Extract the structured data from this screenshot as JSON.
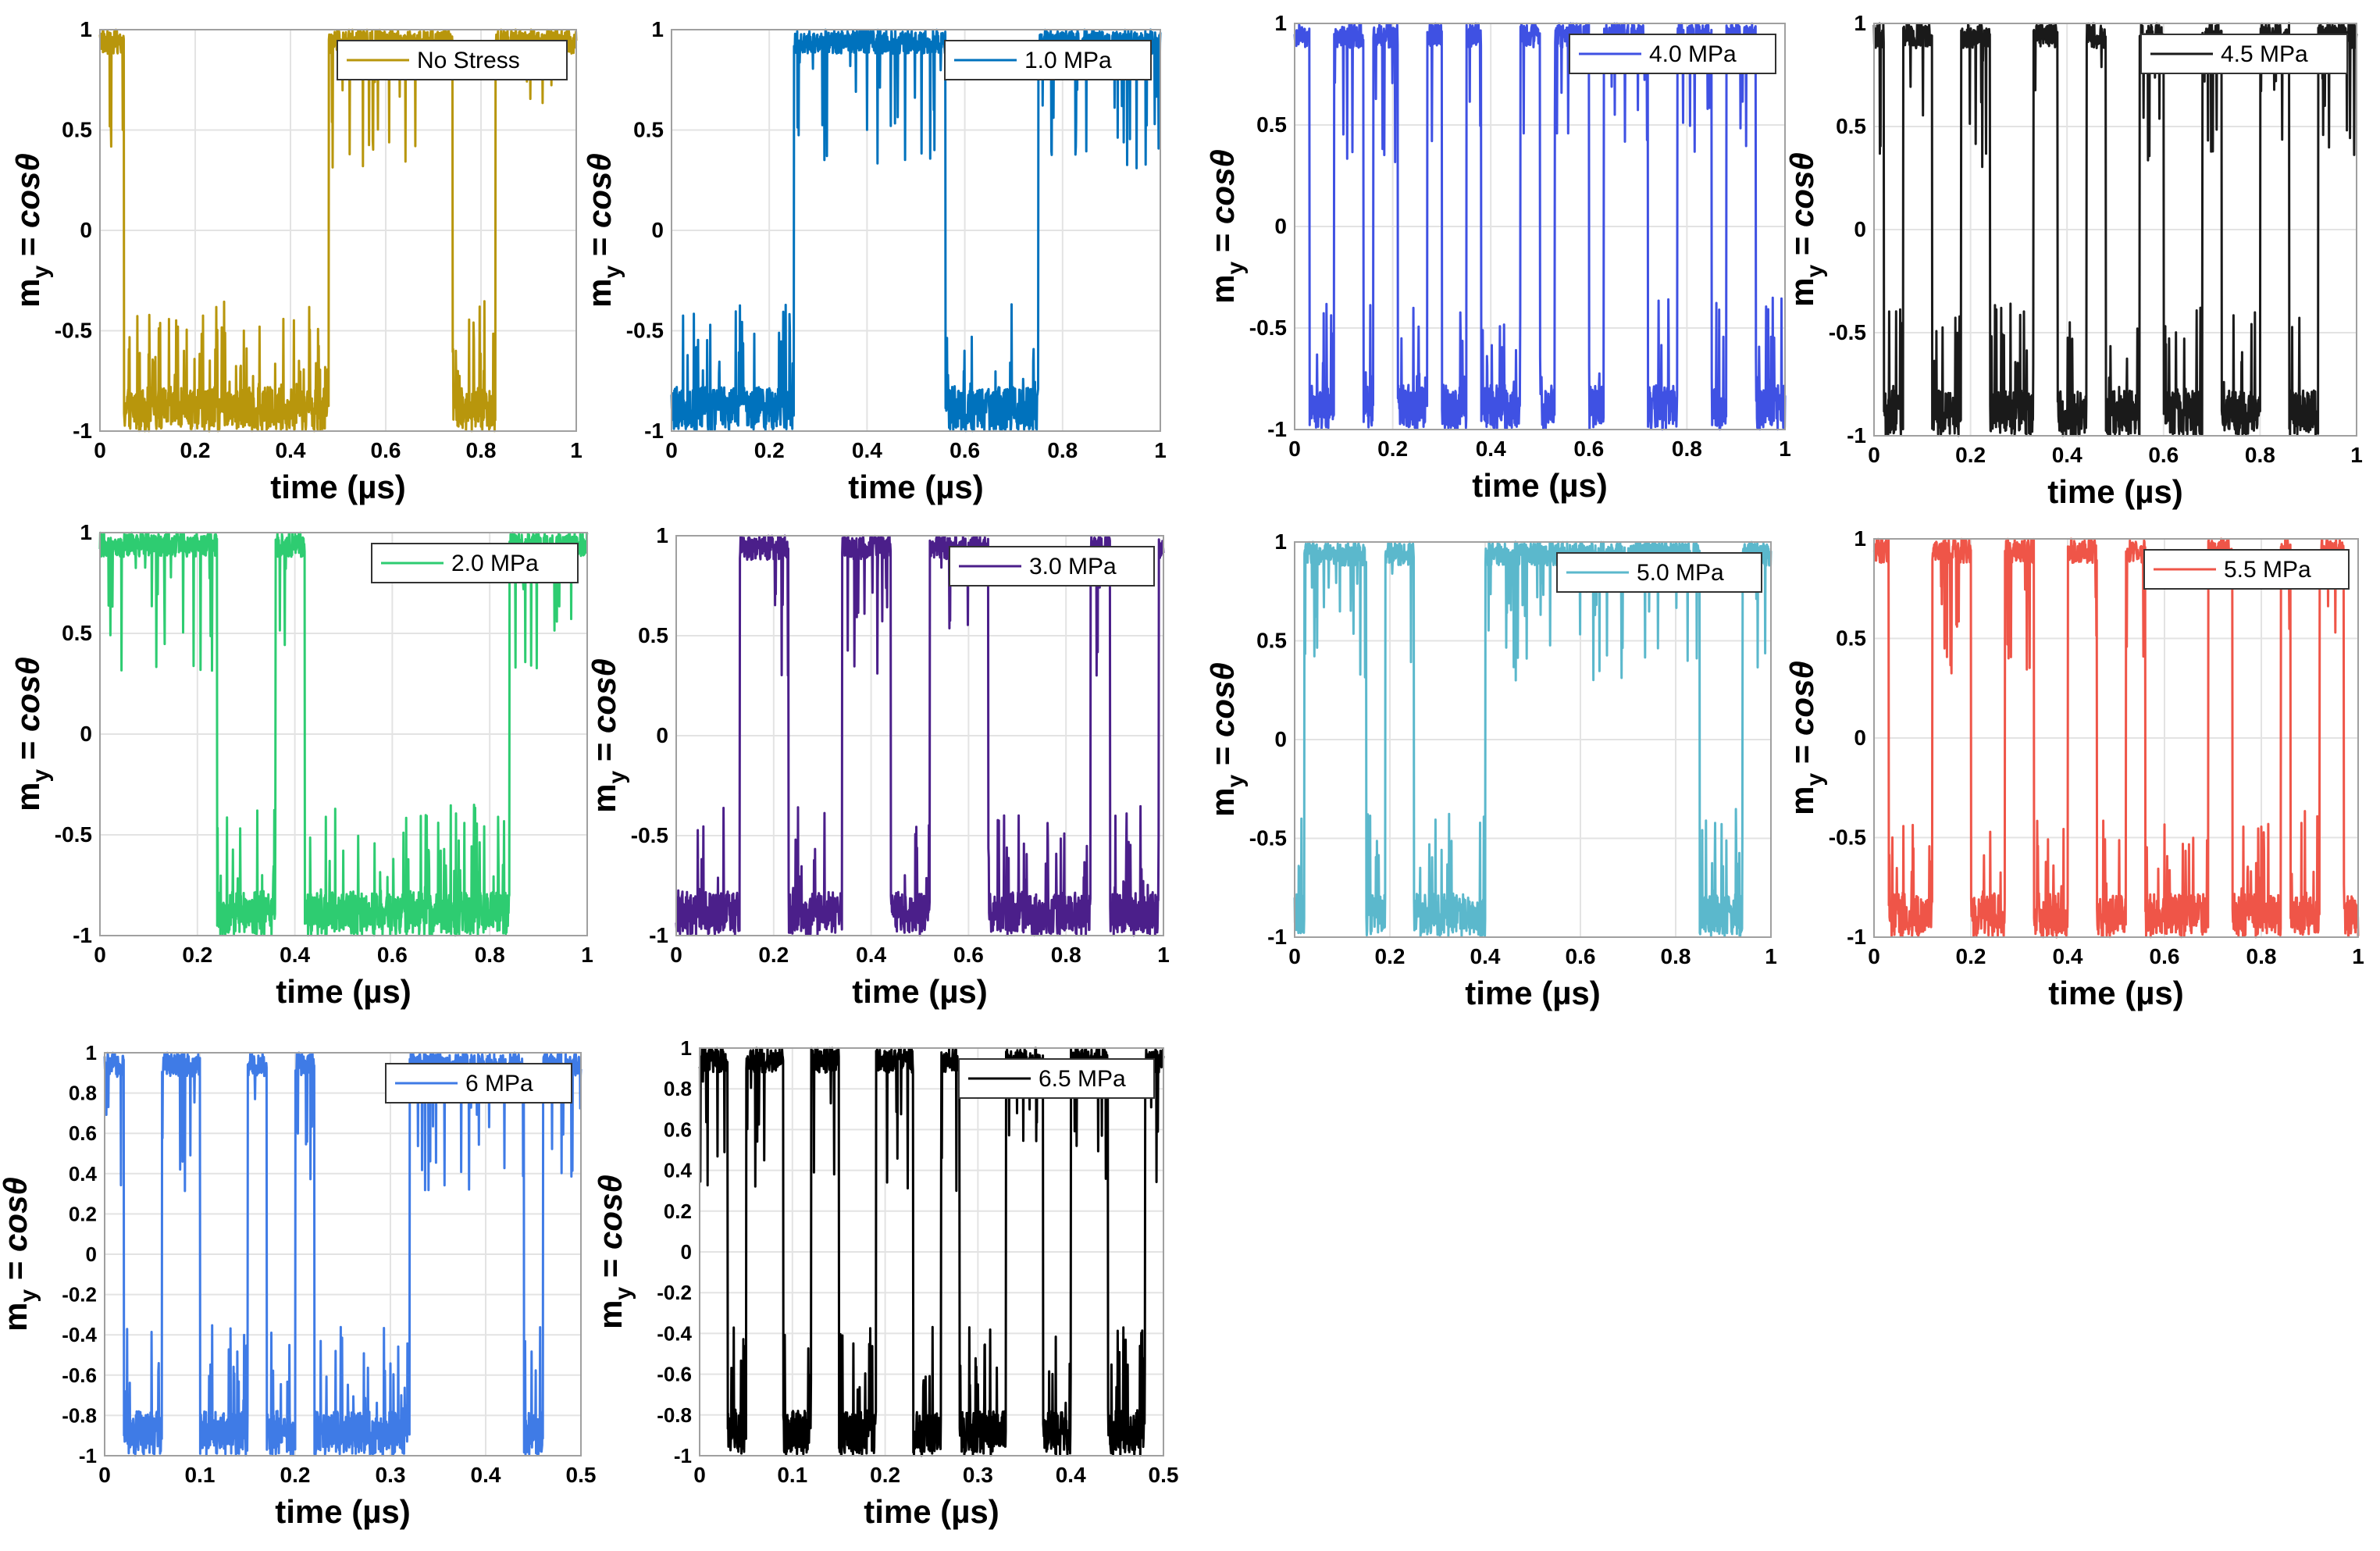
{
  "figure": {
    "ylabel_main": "m",
    "ylabel_sub": "y",
    "ylabel_eq": " = ",
    "ylabel_cos": "cosθ",
    "xlabel": "time (µs)"
  },
  "chart_data": [
    {
      "id": "p1",
      "type": "line",
      "legend": "No Stress",
      "color": "#B8960C",
      "xlim": [
        0,
        1
      ],
      "ylim": [
        -1,
        1
      ],
      "xticks": [
        "0",
        "0.2",
        "0.4",
        "0.6",
        "0.8",
        "1"
      ],
      "yticks": [
        "-1",
        "-0.5",
        "0",
        "0.5",
        "1"
      ],
      "xlabel": "time (µs)",
      "ylabel": "m_y = cosθ",
      "grid": true,
      "legend_position": "top-right",
      "segments": [
        {
          "from": 0,
          "to": 0.05,
          "state": 1
        },
        {
          "from": 0.05,
          "to": 0.48,
          "state": -1
        },
        {
          "from": 0.48,
          "to": 0.74,
          "state": 1
        },
        {
          "from": 0.74,
          "to": 0.83,
          "state": -1
        },
        {
          "from": 0.83,
          "to": 1.0,
          "state": 1
        }
      ]
    },
    {
      "id": "p2",
      "type": "line",
      "legend": "1.0 MPa",
      "color": "#0072BD",
      "xlim": [
        0,
        1
      ],
      "ylim": [
        -1,
        1
      ],
      "xticks": [
        "0",
        "0.2",
        "0.4",
        "0.6",
        "0.8",
        "1"
      ],
      "yticks": [
        "-1",
        "-0.5",
        "0",
        "0.5",
        "1"
      ],
      "xlabel": "time (µs)",
      "ylabel": "m_y = cosθ",
      "grid": true,
      "legend_position": "top-right",
      "segments": [
        {
          "from": 0,
          "to": 0.25,
          "state": -1
        },
        {
          "from": 0.25,
          "to": 0.56,
          "state": 1
        },
        {
          "from": 0.56,
          "to": 0.75,
          "state": -1
        },
        {
          "from": 0.75,
          "to": 1.0,
          "state": 1
        }
      ]
    },
    {
      "id": "p3",
      "type": "line",
      "legend": "4.0 MPa",
      "color": "#3F51E3",
      "xlim": [
        0,
        1
      ],
      "ylim": [
        -1,
        1
      ],
      "xticks": [
        "0",
        "0.2",
        "0.4",
        "0.6",
        "0.8",
        "1"
      ],
      "yticks": [
        "-1",
        "-0.5",
        "0",
        "0.5",
        "1"
      ],
      "xlabel": "time (µs)",
      "ylabel": "m_y = cosθ",
      "grid": true,
      "legend_position": "top-right",
      "segments": [
        {
          "from": 0,
          "to": 0.03,
          "state": 1
        },
        {
          "from": 0.03,
          "to": 0.08,
          "state": -1
        },
        {
          "from": 0.08,
          "to": 0.14,
          "state": 1
        },
        {
          "from": 0.14,
          "to": 0.16,
          "state": -1
        },
        {
          "from": 0.16,
          "to": 0.21,
          "state": 1
        },
        {
          "from": 0.21,
          "to": 0.27,
          "state": -1
        },
        {
          "from": 0.27,
          "to": 0.3,
          "state": 1
        },
        {
          "from": 0.3,
          "to": 0.35,
          "state": -1
        },
        {
          "from": 0.35,
          "to": 0.38,
          "state": 1
        },
        {
          "from": 0.38,
          "to": 0.46,
          "state": -1
        },
        {
          "from": 0.46,
          "to": 0.5,
          "state": 1
        },
        {
          "from": 0.5,
          "to": 0.53,
          "state": -1
        },
        {
          "from": 0.53,
          "to": 0.6,
          "state": 1
        },
        {
          "from": 0.6,
          "to": 0.63,
          "state": -1
        },
        {
          "from": 0.63,
          "to": 0.72,
          "state": 1
        },
        {
          "from": 0.72,
          "to": 0.78,
          "state": -1
        },
        {
          "from": 0.78,
          "to": 0.85,
          "state": 1
        },
        {
          "from": 0.85,
          "to": 0.88,
          "state": -1
        },
        {
          "from": 0.88,
          "to": 0.94,
          "state": 1
        },
        {
          "from": 0.94,
          "to": 1.0,
          "state": -1
        }
      ]
    },
    {
      "id": "p4",
      "type": "line",
      "legend": "4.5 MPa",
      "color": "#1A1A1A",
      "xlim": [
        0,
        1
      ],
      "ylim": [
        -1,
        1
      ],
      "xticks": [
        "0",
        "0.2",
        "0.4",
        "0.6",
        "0.8",
        "1"
      ],
      "yticks": [
        "-1",
        "-0.5",
        "0",
        "0.5",
        "1"
      ],
      "xlabel": "time (µs)",
      "ylabel": "m_y = cosθ",
      "grid": true,
      "legend_position": "top-right",
      "segments": [
        {
          "from": 0,
          "to": 0.02,
          "state": 1
        },
        {
          "from": 0.02,
          "to": 0.06,
          "state": -1
        },
        {
          "from": 0.06,
          "to": 0.12,
          "state": 1
        },
        {
          "from": 0.12,
          "to": 0.18,
          "state": -1
        },
        {
          "from": 0.18,
          "to": 0.24,
          "state": 1
        },
        {
          "from": 0.24,
          "to": 0.33,
          "state": -1
        },
        {
          "from": 0.33,
          "to": 0.38,
          "state": 1
        },
        {
          "from": 0.38,
          "to": 0.44,
          "state": -1
        },
        {
          "from": 0.44,
          "to": 0.48,
          "state": 1
        },
        {
          "from": 0.48,
          "to": 0.55,
          "state": -1
        },
        {
          "from": 0.55,
          "to": 0.6,
          "state": 1
        },
        {
          "from": 0.6,
          "to": 0.68,
          "state": -1
        },
        {
          "from": 0.68,
          "to": 0.72,
          "state": 1
        },
        {
          "from": 0.72,
          "to": 0.8,
          "state": -1
        },
        {
          "from": 0.8,
          "to": 0.86,
          "state": 1
        },
        {
          "from": 0.86,
          "to": 0.92,
          "state": -1
        },
        {
          "from": 0.92,
          "to": 1.0,
          "state": 1
        }
      ]
    },
    {
      "id": "p5",
      "type": "line",
      "legend": "2.0 MPa",
      "color": "#2ECC71",
      "xlim": [
        0,
        1
      ],
      "ylim": [
        -1,
        1
      ],
      "xticks": [
        "0",
        "0.2",
        "0.4",
        "0.6",
        "0.8",
        "1"
      ],
      "yticks": [
        "-1",
        "-0.5",
        "0",
        "0.5",
        "1"
      ],
      "xlabel": "time (µs)",
      "ylabel": "m_y = cosθ",
      "grid": true,
      "legend_position": "top-right",
      "segments": [
        {
          "from": 0,
          "to": 0.24,
          "state": 1
        },
        {
          "from": 0.24,
          "to": 0.36,
          "state": -1
        },
        {
          "from": 0.36,
          "to": 0.42,
          "state": 1
        },
        {
          "from": 0.42,
          "to": 0.84,
          "state": -1
        },
        {
          "from": 0.84,
          "to": 1.0,
          "state": 1
        }
      ]
    },
    {
      "id": "p6",
      "type": "line",
      "legend": "3.0 MPa",
      "color": "#4B1F8A",
      "xlim": [
        0,
        1
      ],
      "ylim": [
        -1,
        1
      ],
      "xticks": [
        "0",
        "0.2",
        "0.4",
        "0.6",
        "0.8",
        "1"
      ],
      "yticks": [
        "-1",
        "-0.5",
        "0",
        "0.5",
        "1"
      ],
      "xlabel": "time (µs)",
      "ylabel": "m_y = cosθ",
      "grid": true,
      "legend_position": "top-right",
      "segments": [
        {
          "from": 0,
          "to": 0.13,
          "state": -1
        },
        {
          "from": 0.13,
          "to": 0.23,
          "state": 1
        },
        {
          "from": 0.23,
          "to": 0.34,
          "state": -1
        },
        {
          "from": 0.34,
          "to": 0.44,
          "state": 1
        },
        {
          "from": 0.44,
          "to": 0.52,
          "state": -1
        },
        {
          "from": 0.52,
          "to": 0.64,
          "state": 1
        },
        {
          "from": 0.64,
          "to": 0.85,
          "state": -1
        },
        {
          "from": 0.85,
          "to": 0.89,
          "state": 1
        },
        {
          "from": 0.89,
          "to": 0.99,
          "state": -1
        },
        {
          "from": 0.99,
          "to": 1.0,
          "state": 1
        }
      ]
    },
    {
      "id": "p7",
      "type": "line",
      "legend": "5.0 MPa",
      "color": "#5BB8CC",
      "xlim": [
        0,
        1
      ],
      "ylim": [
        -1,
        1
      ],
      "xticks": [
        "0",
        "0.2",
        "0.4",
        "0.6",
        "0.8",
        "1"
      ],
      "yticks": [
        "-1",
        "-0.5",
        "0",
        "0.5",
        "1"
      ],
      "xlabel": "time (µs)",
      "ylabel": "m_y = cosθ",
      "grid": true,
      "legend_position": "top-right",
      "segments": [
        {
          "from": 0,
          "to": 0.02,
          "state": -1
        },
        {
          "from": 0.02,
          "to": 0.15,
          "state": 1
        },
        {
          "from": 0.15,
          "to": 0.19,
          "state": -1
        },
        {
          "from": 0.19,
          "to": 0.25,
          "state": 1
        },
        {
          "from": 0.25,
          "to": 0.4,
          "state": -1
        },
        {
          "from": 0.4,
          "to": 0.85,
          "state": 1
        },
        {
          "from": 0.85,
          "to": 0.94,
          "state": -1
        },
        {
          "from": 0.94,
          "to": 1.0,
          "state": 1
        }
      ]
    },
    {
      "id": "p8",
      "type": "line",
      "legend": "5.5 MPa",
      "color": "#EF5548",
      "xlim": [
        0,
        1
      ],
      "ylim": [
        -1,
        1
      ],
      "xticks": [
        "0",
        "0.2",
        "0.4",
        "0.6",
        "0.8",
        "1"
      ],
      "yticks": [
        "-1",
        "-0.5",
        "0",
        "0.5",
        "1"
      ],
      "xlabel": "time (µs)",
      "ylabel": "m_y = cosθ",
      "grid": true,
      "legend_position": "top-right",
      "segments": [
        {
          "from": 0,
          "to": 0.03,
          "state": 1
        },
        {
          "from": 0.03,
          "to": 0.12,
          "state": -1
        },
        {
          "from": 0.12,
          "to": 0.2,
          "state": 1
        },
        {
          "from": 0.2,
          "to": 0.27,
          "state": -1
        },
        {
          "from": 0.27,
          "to": 0.33,
          "state": 1
        },
        {
          "from": 0.33,
          "to": 0.4,
          "state": -1
        },
        {
          "from": 0.4,
          "to": 0.46,
          "state": 1
        },
        {
          "from": 0.46,
          "to": 0.52,
          "state": -1
        },
        {
          "from": 0.52,
          "to": 0.56,
          "state": 1
        },
        {
          "from": 0.56,
          "to": 0.69,
          "state": -1
        },
        {
          "from": 0.69,
          "to": 0.74,
          "state": 1
        },
        {
          "from": 0.74,
          "to": 0.84,
          "state": -1
        },
        {
          "from": 0.84,
          "to": 0.86,
          "state": 1
        },
        {
          "from": 0.86,
          "to": 0.92,
          "state": -1
        },
        {
          "from": 0.92,
          "to": 0.97,
          "state": 1
        },
        {
          "from": 0.97,
          "to": 1.0,
          "state": -1
        }
      ]
    },
    {
      "id": "p9",
      "type": "line",
      "legend": "6 MPa",
      "color": "#3F7BE6",
      "xlim": [
        0,
        0.5
      ],
      "ylim": [
        -1,
        1
      ],
      "xticks": [
        "0",
        "0.1",
        "0.2",
        "0.3",
        "0.4",
        "0.5"
      ],
      "yticks": [
        "-1",
        "-0.8",
        "-0.6",
        "-0.4",
        "-0.2",
        "0",
        "0.2",
        "0.4",
        "0.6",
        "0.8",
        "1"
      ],
      "xlabel": "time (µs)",
      "ylabel": "m_y = cosθ",
      "grid": true,
      "legend_position": "top-right",
      "segments": [
        {
          "from": 0,
          "to": 0.02,
          "state": 1
        },
        {
          "from": 0.02,
          "to": 0.06,
          "state": -1
        },
        {
          "from": 0.06,
          "to": 0.1,
          "state": 1
        },
        {
          "from": 0.1,
          "to": 0.15,
          "state": -1
        },
        {
          "from": 0.15,
          "to": 0.17,
          "state": 1
        },
        {
          "from": 0.17,
          "to": 0.2,
          "state": -1
        },
        {
          "from": 0.2,
          "to": 0.22,
          "state": 1
        },
        {
          "from": 0.22,
          "to": 0.32,
          "state": -1
        },
        {
          "from": 0.32,
          "to": 0.44,
          "state": 1
        },
        {
          "from": 0.44,
          "to": 0.46,
          "state": -1
        },
        {
          "from": 0.46,
          "to": 0.5,
          "state": 1
        }
      ]
    },
    {
      "id": "p10",
      "type": "line",
      "legend": "6.5 MPa",
      "color": "#000000",
      "xlim": [
        0,
        0.5
      ],
      "ylim": [
        -1,
        1
      ],
      "xticks": [
        "0",
        "0.1",
        "0.2",
        "0.3",
        "0.4",
        "0.5"
      ],
      "yticks": [
        "-1",
        "-0.8",
        "-0.6",
        "-0.4",
        "-0.2",
        "0",
        "0.2",
        "0.4",
        "0.6",
        "0.8",
        "1"
      ],
      "xlabel": "time (µs)",
      "ylabel": "m_y = cosθ",
      "grid": true,
      "legend_position": "top-right",
      "segments": [
        {
          "from": 0,
          "to": 0.03,
          "state": 1
        },
        {
          "from": 0.03,
          "to": 0.05,
          "state": -1
        },
        {
          "from": 0.05,
          "to": 0.09,
          "state": 1
        },
        {
          "from": 0.09,
          "to": 0.12,
          "state": -1
        },
        {
          "from": 0.12,
          "to": 0.15,
          "state": 1
        },
        {
          "from": 0.15,
          "to": 0.19,
          "state": -1
        },
        {
          "from": 0.19,
          "to": 0.23,
          "state": 1
        },
        {
          "from": 0.23,
          "to": 0.26,
          "state": -1
        },
        {
          "from": 0.26,
          "to": 0.28,
          "state": 1
        },
        {
          "from": 0.28,
          "to": 0.33,
          "state": -1
        },
        {
          "from": 0.33,
          "to": 0.37,
          "state": 1
        },
        {
          "from": 0.37,
          "to": 0.4,
          "state": -1
        },
        {
          "from": 0.4,
          "to": 0.44,
          "state": 1
        },
        {
          "from": 0.44,
          "to": 0.48,
          "state": -1
        },
        {
          "from": 0.48,
          "to": 0.5,
          "state": 1
        }
      ]
    }
  ]
}
